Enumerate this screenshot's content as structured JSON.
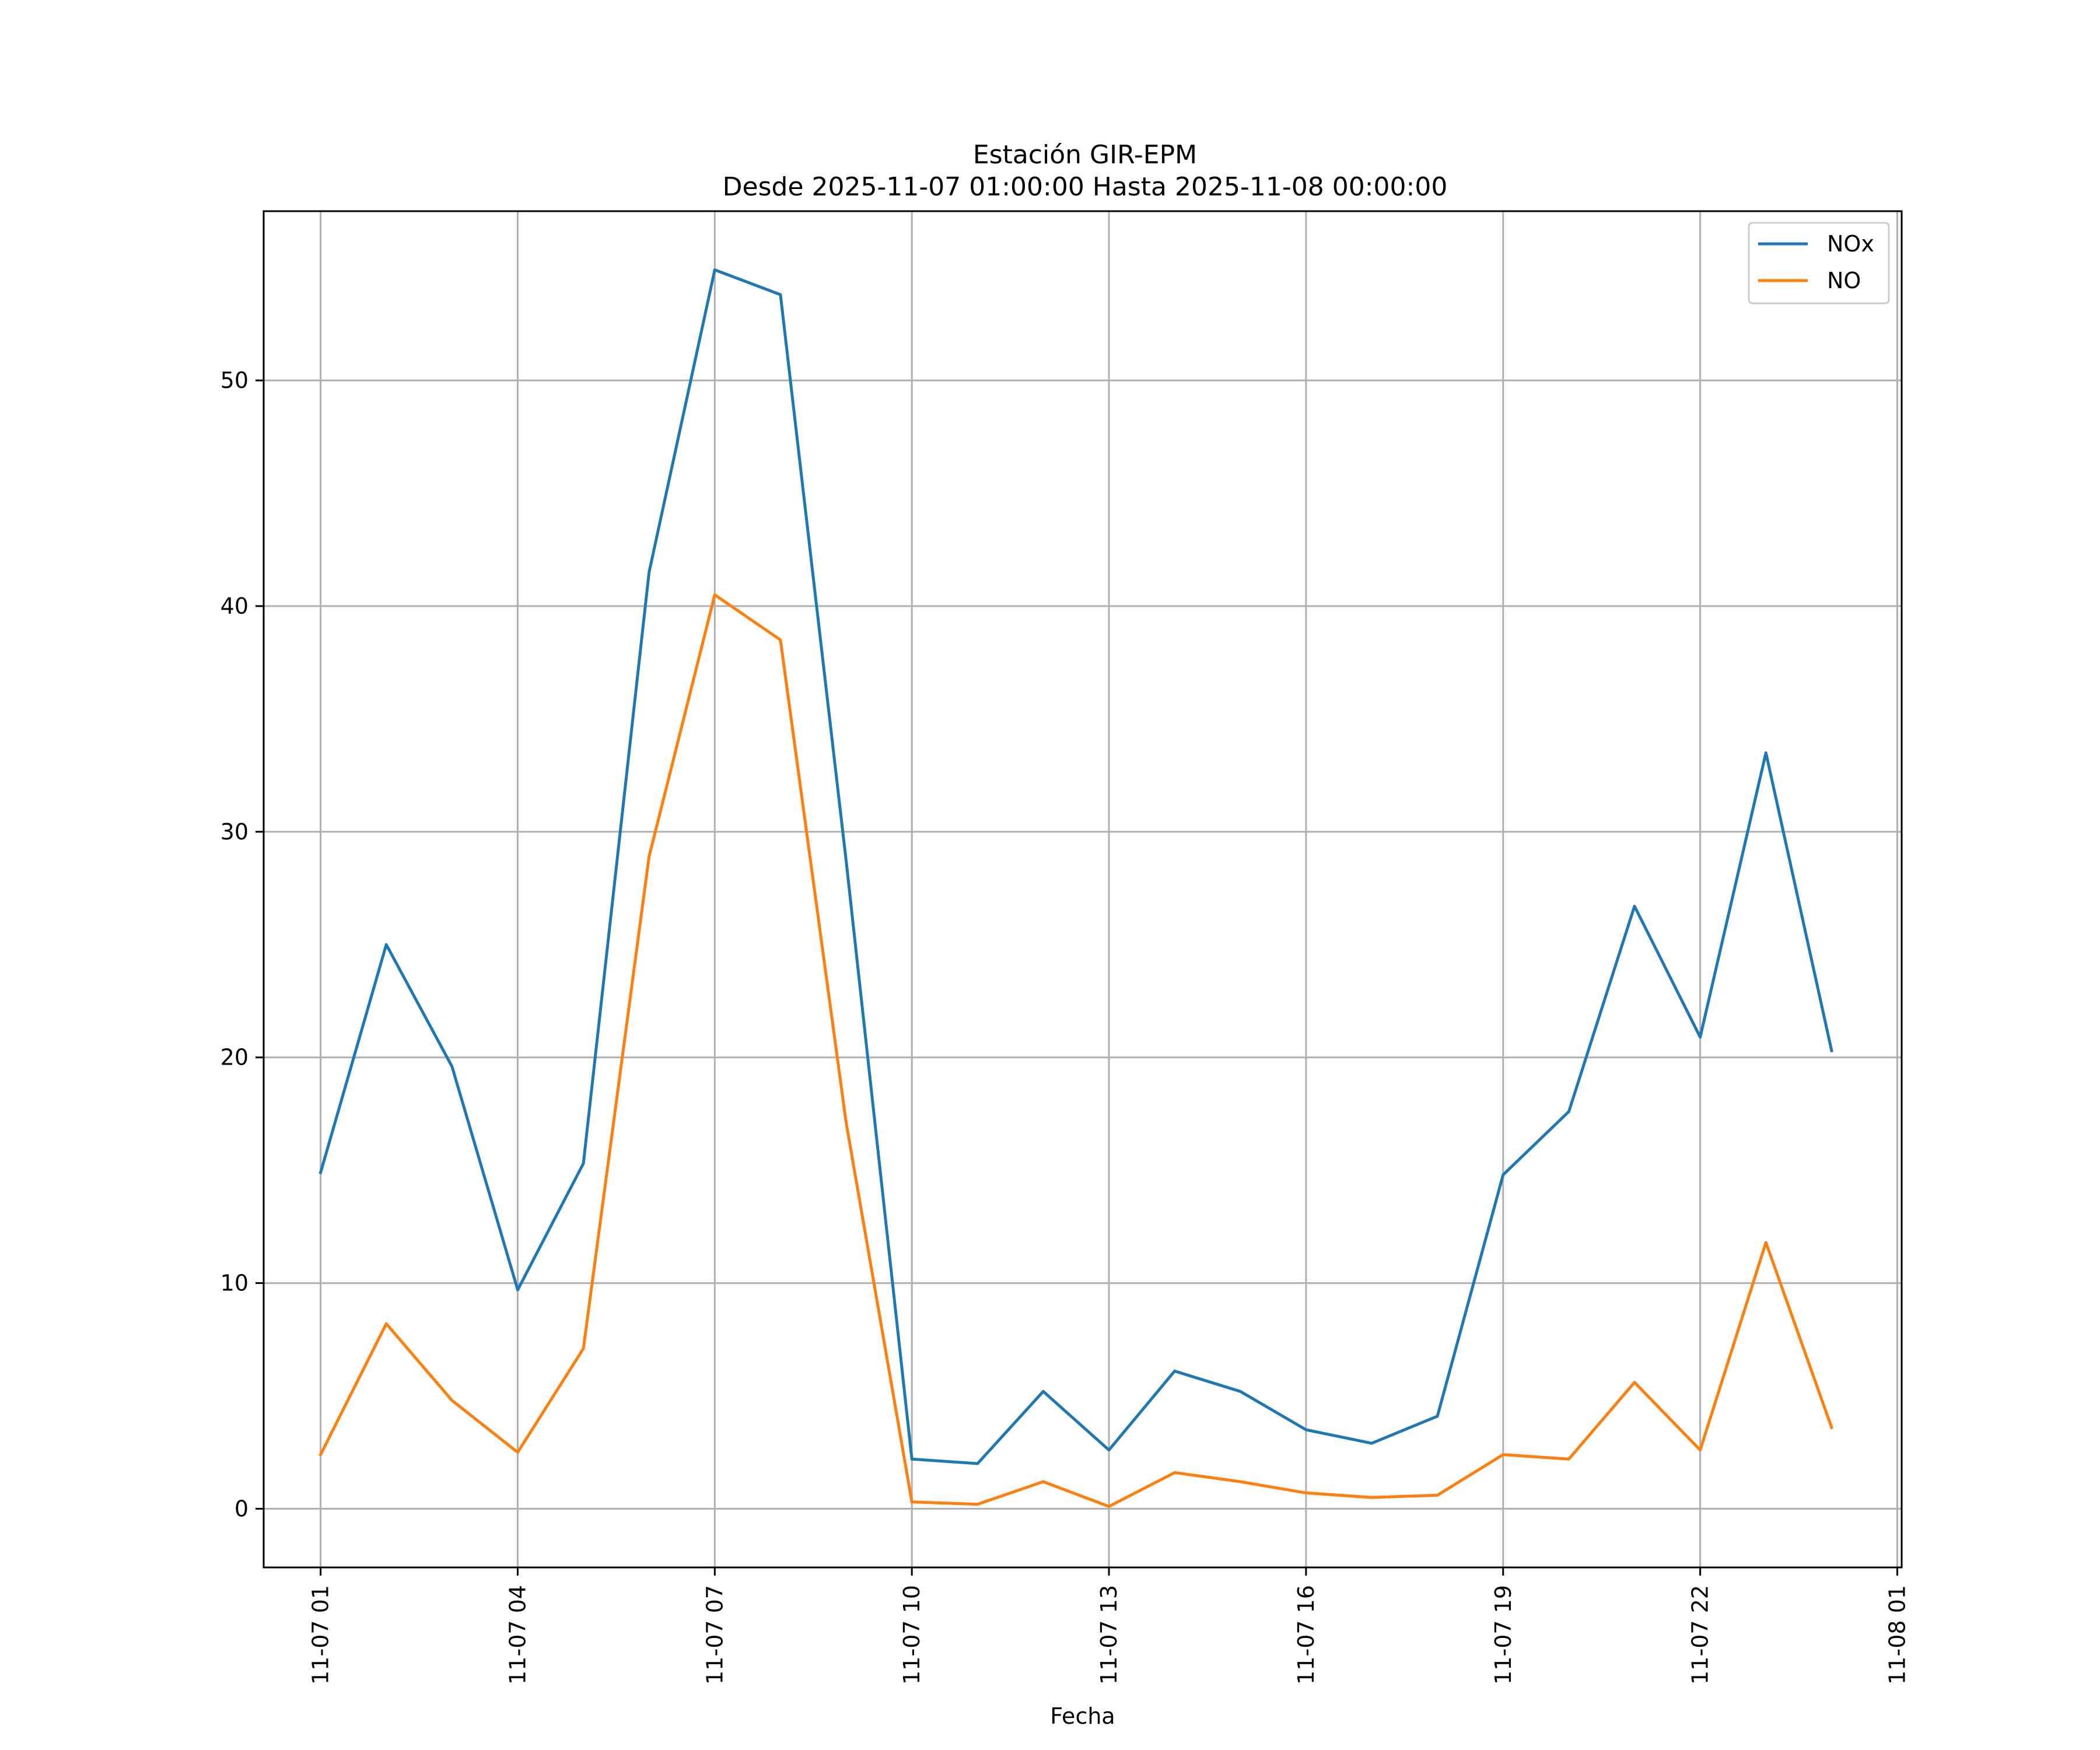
{
  "chart_data": {
    "type": "line",
    "title": "Estación GIR-EPM",
    "subtitle": "Desde 2025-11-07 01:00:00 Hasta 2025-11-08 00:00:00",
    "xlabel": "Fecha",
    "ylabel": "",
    "x": [
      "2025-11-07 01:00",
      "2025-11-07 02:00",
      "2025-11-07 03:00",
      "2025-11-07 04:00",
      "2025-11-07 05:00",
      "2025-11-07 06:00",
      "2025-11-07 07:00",
      "2025-11-07 08:00",
      "2025-11-07 09:00",
      "2025-11-07 10:00",
      "2025-11-07 11:00",
      "2025-11-07 12:00",
      "2025-11-07 13:00",
      "2025-11-07 14:00",
      "2025-11-07 15:00",
      "2025-11-07 16:00",
      "2025-11-07 17:00",
      "2025-11-07 18:00",
      "2025-11-07 19:00",
      "2025-11-07 20:00",
      "2025-11-07 21:00",
      "2025-11-07 22:00",
      "2025-11-07 23:00",
      "2025-11-08 00:00"
    ],
    "series": [
      {
        "name": "NOx",
        "color": "#1f77b4",
        "values": [
          14.9,
          25.0,
          19.6,
          9.7,
          15.3,
          41.5,
          54.9,
          53.8,
          28.7,
          2.2,
          2.0,
          5.2,
          2.6,
          6.1,
          5.2,
          3.5,
          2.9,
          4.1,
          14.8,
          17.6,
          26.7,
          20.9,
          33.5,
          20.3
        ]
      },
      {
        "name": "NO",
        "color": "#ff7f0e",
        "values": [
          2.4,
          8.2,
          4.8,
          2.5,
          7.1,
          28.9,
          40.5,
          38.5,
          17.1,
          0.3,
          0.2,
          1.2,
          0.1,
          1.6,
          1.2,
          0.7,
          0.5,
          0.6,
          2.4,
          2.2,
          5.6,
          2.6,
          11.8,
          3.6
        ]
      }
    ],
    "x_ticks": [
      "11-07 01",
      "11-07 04",
      "11-07 07",
      "11-07 10",
      "11-07 13",
      "11-07 16",
      "11-07 19",
      "11-07 22",
      "11-08 01"
    ],
    "y_ticks": [
      0,
      10,
      20,
      30,
      40,
      50
    ],
    "xlim": [
      "2025-11-07 00:08",
      "2025-11-08 01:04"
    ],
    "ylim": [
      -2.6,
      57.5
    ],
    "grid": true,
    "legend_position": "upper right"
  }
}
